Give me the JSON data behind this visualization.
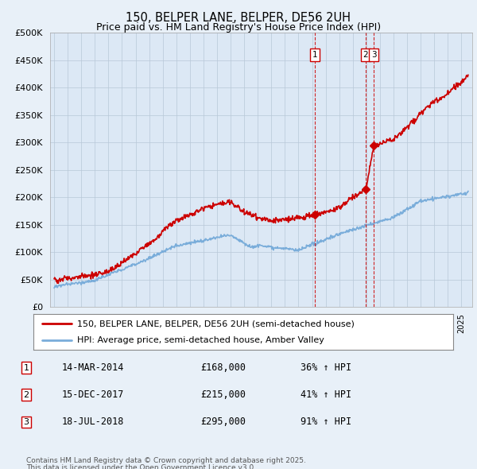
{
  "title": "150, BELPER LANE, BELPER, DE56 2UH",
  "subtitle": "Price paid vs. HM Land Registry's House Price Index (HPI)",
  "background_color": "#e8f0f8",
  "plot_bg_color": "#dce8f5",
  "ylim": [
    0,
    500000
  ],
  "yticks": [
    0,
    50000,
    100000,
    150000,
    200000,
    250000,
    300000,
    350000,
    400000,
    450000,
    500000
  ],
  "transactions": [
    {
      "num": 1,
      "date": "14-MAR-2014",
      "price": 168000,
      "price_str": "£168,000",
      "pct": "36% ↑ HPI",
      "x_year": 2014.2
    },
    {
      "num": 2,
      "date": "15-DEC-2017",
      "price": 215000,
      "price_str": "£215,000",
      "pct": "41% ↑ HPI",
      "x_year": 2017.95
    },
    {
      "num": 3,
      "date": "18-JUL-2018",
      "price": 295000,
      "price_str": "£295,000",
      "pct": "91% ↑ HPI",
      "x_year": 2018.55
    }
  ],
  "legend_line1": "150, BELPER LANE, BELPER, DE56 2UH (semi-detached house)",
  "legend_line2": "HPI: Average price, semi-detached house, Amber Valley",
  "footnote1": "Contains HM Land Registry data © Crown copyright and database right 2025.",
  "footnote2": "This data is licensed under the Open Government Licence v3.0.",
  "red_color": "#cc0000",
  "blue_color": "#7aadda",
  "marker_box_color": "#cc0000",
  "xlim_left": 1994.7,
  "xlim_right": 2025.8
}
